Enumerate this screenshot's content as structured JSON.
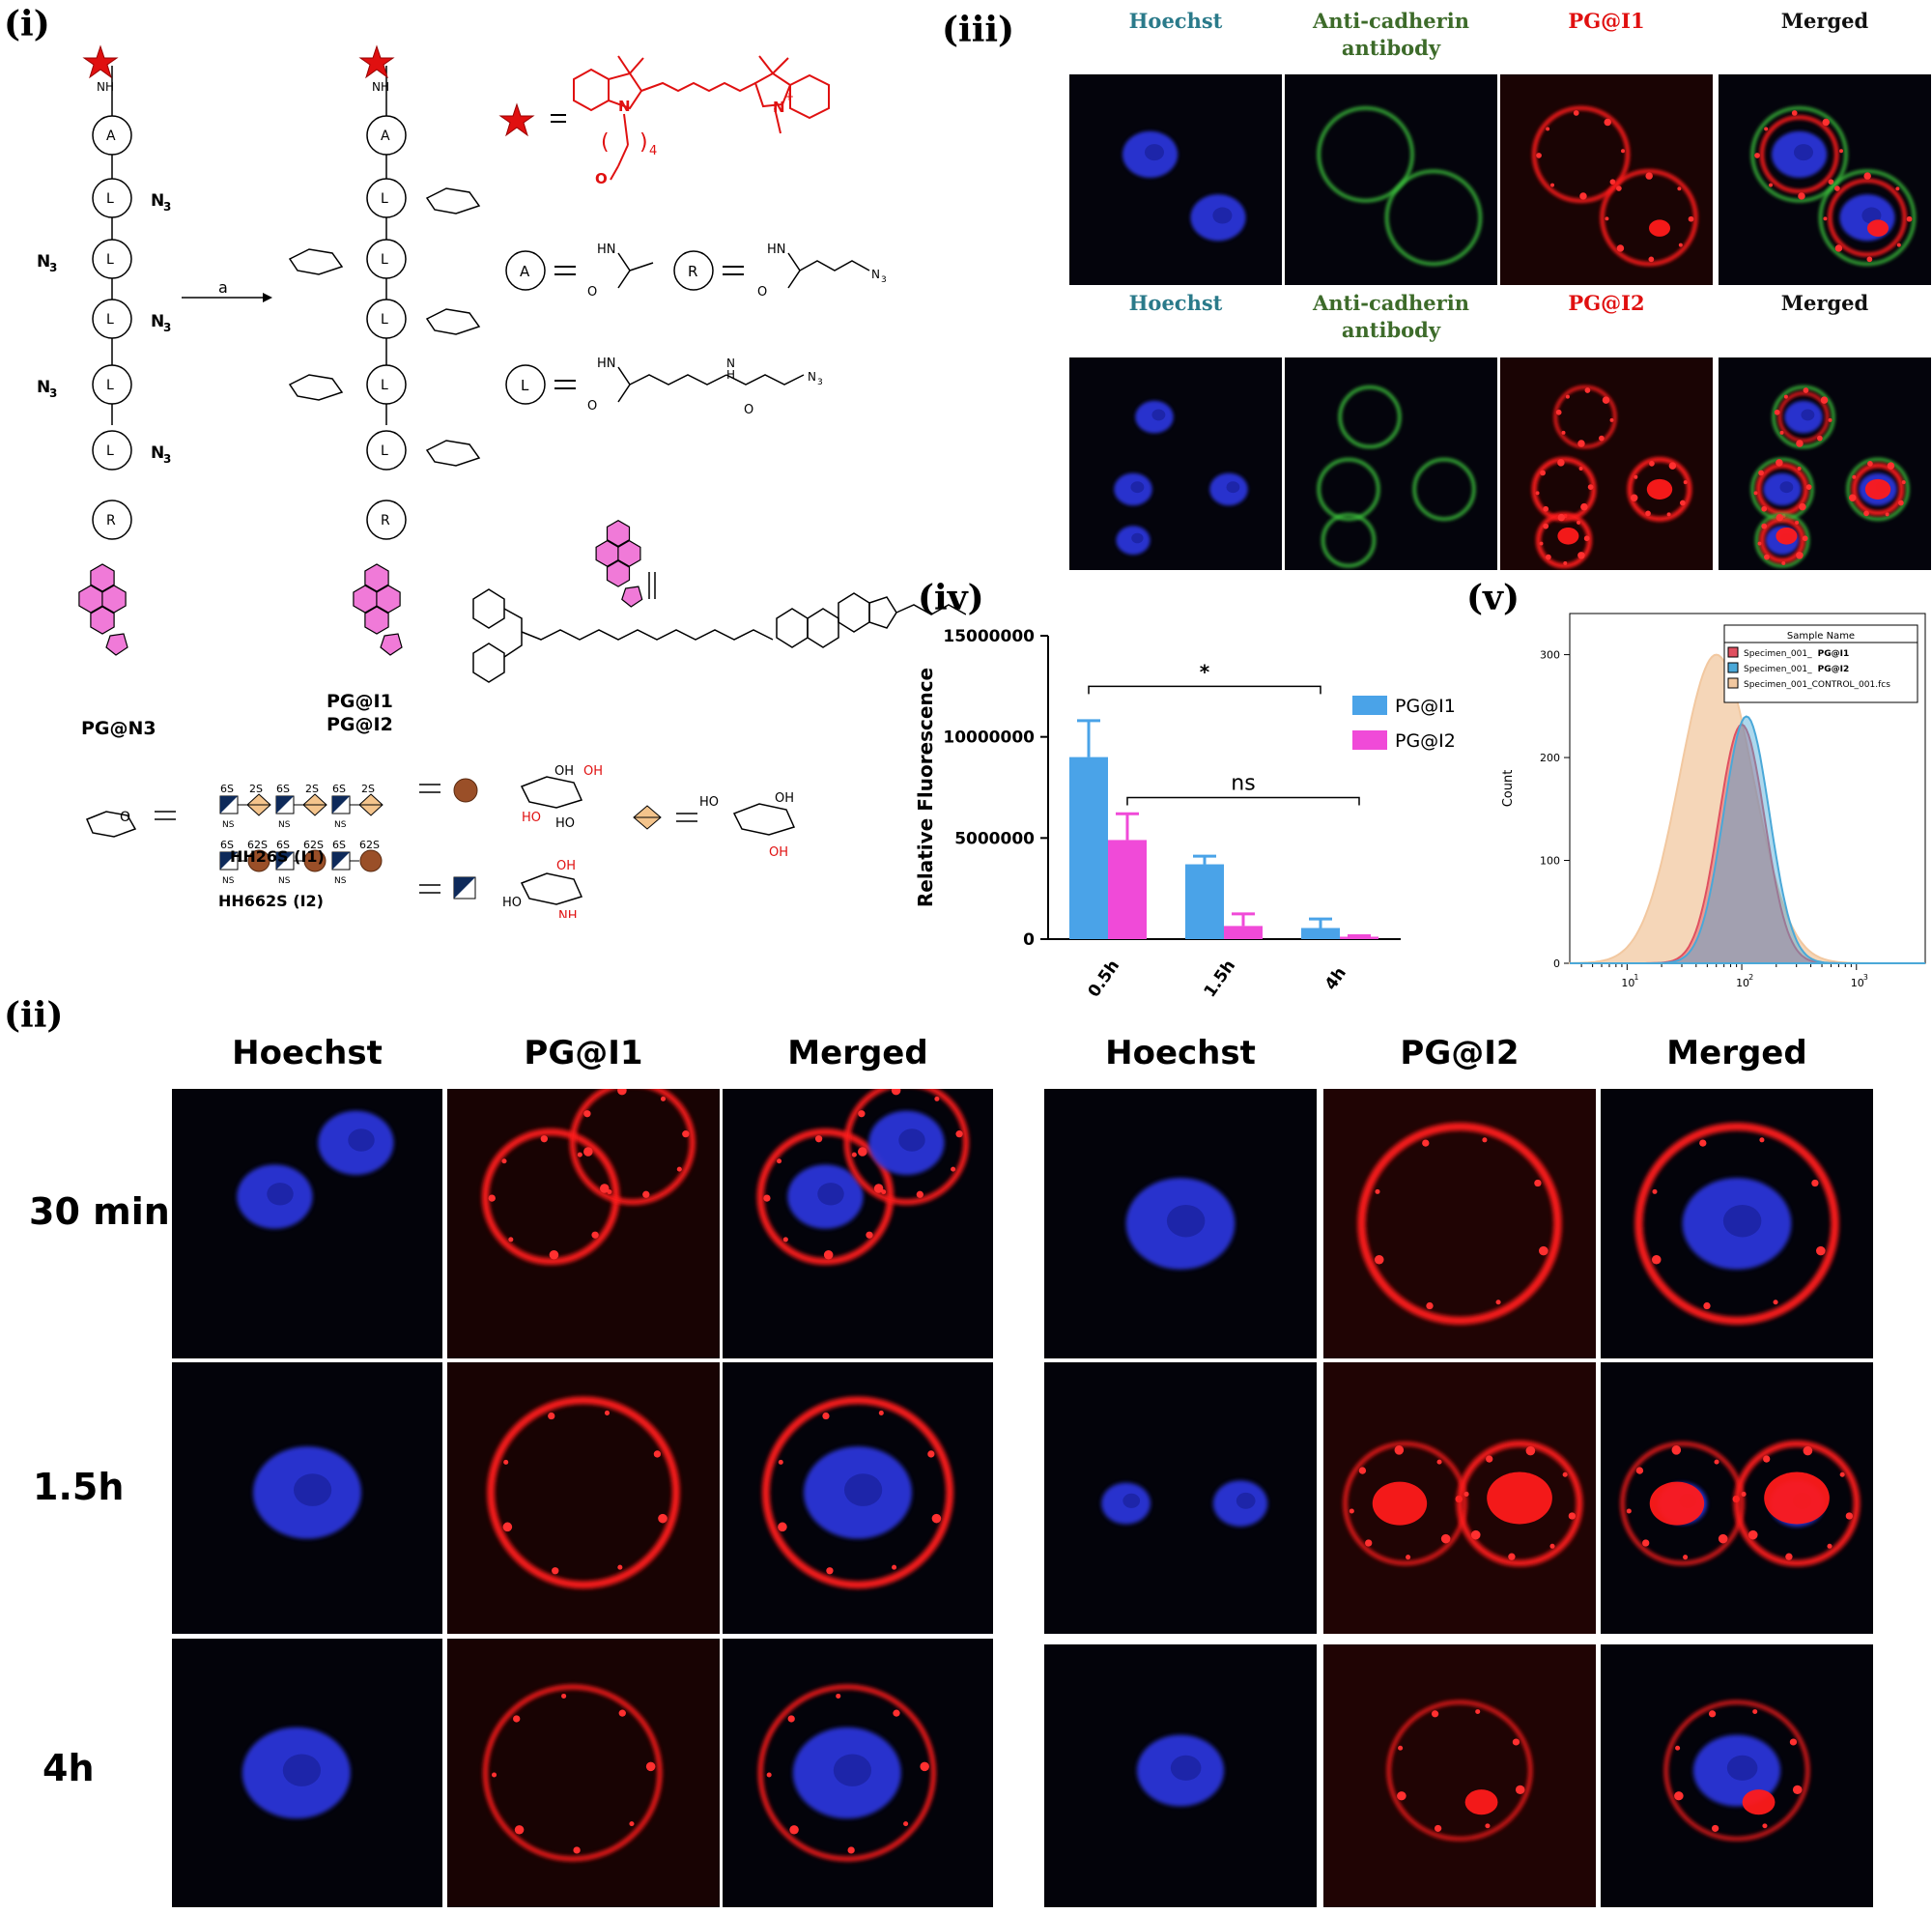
{
  "panels": {
    "i": {
      "label": "(i)",
      "residues": {
        "a": "A",
        "l": "L",
        "r": "R"
      },
      "n3": "N3",
      "nh": "NH",
      "arrow_reagent": "a",
      "left_name": "PG@N3",
      "right_names": [
        "PG@I1",
        "PG@I2"
      ],
      "hh26s": "HH26S (I1)",
      "hh662s": "HH662S (I2)",
      "hh26s_marks": [
        "6S",
        "2S",
        "6S",
        "2S",
        "6S",
        "2S"
      ],
      "hh662s_marks": [
        "6S",
        "62S",
        "6S",
        "62S",
        "6S",
        "62S"
      ],
      "ns": "NS",
      "subscript_4": "4"
    },
    "ii": {
      "label": "(ii)",
      "left_headers": [
        "Hoechst",
        "PG@I1",
        "Merged"
      ],
      "right_headers": [
        "Hoechst",
        "PG@I2",
        "Merged"
      ],
      "rows": [
        "30 min",
        "1.5h",
        "4h"
      ]
    },
    "iii": {
      "label": "(iii)",
      "row1_headers": [
        "Hoechst",
        "Anti-cadherin antibody",
        "PG@I1",
        "Merged"
      ],
      "row2_headers": [
        "Hoechst",
        "Anti-cadherin antibody",
        "PG@I2",
        "Merged"
      ],
      "colors": {
        "hoechst": "#2a7a8a",
        "antibody": "#3d6b2a",
        "pg": "#e01010",
        "merged": "#111111"
      }
    },
    "iv": {
      "label": "(iv)",
      "sig1": "*",
      "sig2": "ns"
    },
    "v": {
      "label": "(v)"
    }
  },
  "chart_data": [
    {
      "type": "bar",
      "panel": "iv",
      "categories": [
        "0.5h",
        "1.5h",
        "4h"
      ],
      "series": [
        {
          "name": "PG@I1",
          "values": [
            9000000,
            3700000,
            550000
          ],
          "errors": [
            1800000,
            400000,
            450000
          ],
          "color": "#4aa3e8"
        },
        {
          "name": "PG@I2",
          "values": [
            4900000,
            650000,
            120000
          ],
          "errors": [
            1300000,
            600000,
            50000
          ],
          "color": "#f04ad8"
        }
      ],
      "ylabel": "Relative Fluorescence",
      "xlabel": "",
      "ylim": [
        0,
        15000000
      ],
      "yticks": [
        "0",
        "5000000",
        "10000000",
        "15000000"
      ],
      "legend": "top-right"
    },
    {
      "type": "area",
      "panel": "v",
      "ylabel": "Count",
      "xscale": "log",
      "xticks": [
        "10",
        "10",
        "10"
      ],
      "xtick_exponents": [
        "1",
        "2",
        "3"
      ],
      "yticks": [
        "0",
        "100",
        "200",
        "300"
      ],
      "ylim": [
        0,
        340
      ],
      "legend_title": "Sample Name",
      "series": [
        {
          "name": "Specimen_001_ PG@I1",
          "name_prefix": "Specimen_001_",
          "name_bold": "PG@I1",
          "color": "#e05060",
          "peak_x": 100,
          "peak_y": 232
        },
        {
          "name": "Specimen_001_ PG@I2",
          "name_prefix": "Specimen_001_",
          "name_bold": "PG@I2",
          "color": "#4aa8d8",
          "peak_x": 110,
          "peak_y": 240
        },
        {
          "name": "Specimen_001_CONTROL_001.fcs",
          "name_prefix": "Specimen_001_CONTROL_001.fcs",
          "name_bold": "",
          "color": "#f2c8a0",
          "peak_x": 60,
          "peak_y": 300
        }
      ]
    }
  ]
}
